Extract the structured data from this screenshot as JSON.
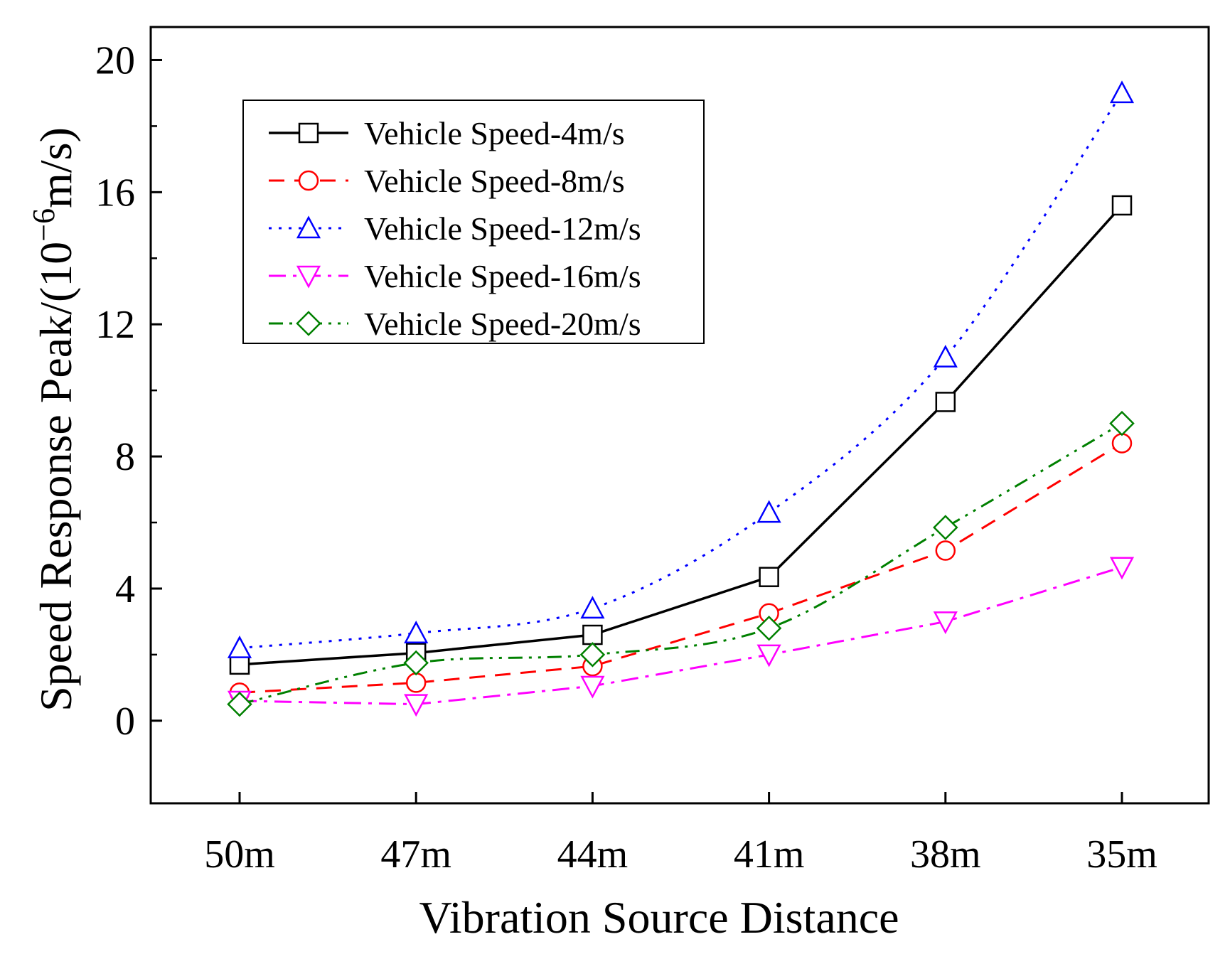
{
  "chart_data": {
    "type": "line",
    "title": "",
    "xlabel": "Vibration Source Distance",
    "ylabel_main": "Speed Response Peak/(10",
    "ylabel_sup": "−6",
    "ylabel_tail": "m/s)",
    "categories": [
      "50m",
      "47m",
      "44m",
      "41m",
      "38m",
      "35m"
    ],
    "ylim": [
      -2.5,
      21
    ],
    "yticks": [
      0,
      4,
      8,
      12,
      16,
      20
    ],
    "ytick_labels": [
      "0",
      "4",
      "8",
      "12",
      "16",
      "20"
    ],
    "legend_position": "top-left",
    "series": [
      {
        "name": "Vehicle Speed-4m/s",
        "color": "#000000",
        "dash": "solid",
        "marker": "square",
        "values": [
          1.7,
          2.05,
          2.6,
          4.35,
          9.65,
          15.6
        ]
      },
      {
        "name": "Vehicle Speed-8m/s",
        "color": "#ff0000",
        "dash": "dash",
        "marker": "circle",
        "values": [
          0.85,
          1.15,
          1.65,
          3.25,
          5.15,
          8.4
        ]
      },
      {
        "name": "Vehicle Speed-12m/s",
        "color": "#0000ff",
        "dash": "dot",
        "marker": "triangle-up",
        "values": [
          2.2,
          2.65,
          3.4,
          6.3,
          11.0,
          19.0
        ]
      },
      {
        "name": "Vehicle Speed-16m/s",
        "color": "#ff00ff",
        "dash": "dashdot",
        "marker": "triangle-down",
        "values": [
          0.6,
          0.5,
          1.05,
          2.0,
          3.0,
          4.65
        ]
      },
      {
        "name": "Vehicle Speed-20m/s",
        "color": "#008000",
        "dash": "dashdotdot",
        "marker": "diamond",
        "values": [
          0.5,
          1.75,
          2.0,
          2.8,
          5.85,
          9.0
        ]
      }
    ]
  }
}
